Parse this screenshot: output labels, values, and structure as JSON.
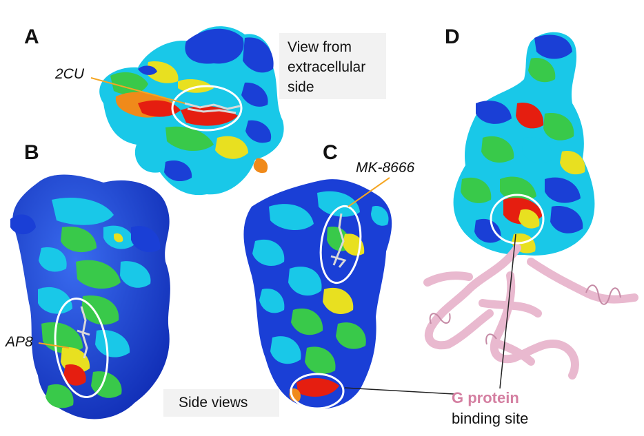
{
  "panels": {
    "a": {
      "letter": "A",
      "ligand": "2CU",
      "caption": "View from extracellular side"
    },
    "b": {
      "letter": "B",
      "ligand": "AP8"
    },
    "c": {
      "letter": "C",
      "ligand": "MK-8666"
    },
    "d": {
      "letter": "D",
      "gprotein_title": "G protein",
      "gprotein_subtitle": "binding site"
    }
  },
  "side_caption": "Side views",
  "colors": {
    "surface_blue": "#1a3fd6",
    "surface_cyan": "#19c8e8",
    "surface_green": "#39c94a",
    "surface_yellow": "#e8e020",
    "surface_orange": "#f08a1a",
    "surface_red": "#e51e10",
    "gprotein_pink": "#e9b9cf",
    "gprotein_text": "#d47fa1",
    "arrow_orange": "#f5a623"
  }
}
